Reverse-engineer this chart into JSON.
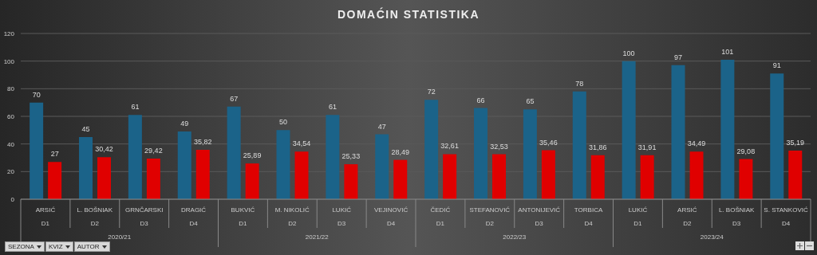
{
  "chart_data": {
    "type": "bar",
    "title": "DOMAĆIN STATISTIKA",
    "categories": [
      "ARSIĆ\nD1",
      "L. BOŠNIAK\nD2",
      "GRNČARSKI\nD3",
      "DRAGIĆ\nD4",
      "BUKVIĆ\nD1",
      "M. NIKOLIĆ\nD2",
      "LUKIĆ\nD3",
      "VEJINOVIĆ\nD4",
      "ČEDIĆ\nD1",
      "STEFANOVIĆ\nD2",
      "ANTONIJEVIĆ\nD3",
      "TORBICA\nD4",
      "LUKIĆ\nD1",
      "ARSIĆ\nD2",
      "L. BOŠNIAK\nD3",
      "S. STANKOVIĆ\nD4"
    ],
    "series": [
      {
        "color": "#1b6389",
        "values": [
          70,
          45,
          61,
          49,
          67,
          50,
          61,
          47,
          72,
          66,
          65,
          78,
          100,
          97,
          101,
          91
        ],
        "value_labels": [
          "70",
          "45",
          "61",
          "49",
          "67",
          "50",
          "61",
          "47",
          "72",
          "66",
          "65",
          "78",
          "100",
          "97",
          "101",
          "91"
        ]
      },
      {
        "color": "#e00000",
        "values": [
          27,
          30.42,
          29.42,
          35.82,
          25.89,
          34.54,
          25.33,
          28.49,
          32.61,
          32.53,
          35.46,
          31.86,
          31.91,
          34.49,
          29.08,
          35.19
        ],
        "value_labels": [
          "27",
          "30,42",
          "29,42",
          "35,82",
          "25,89",
          "34,54",
          "25,33",
          "28,49",
          "32,61",
          "32,53",
          "35,46",
          "31,86",
          "31,91",
          "34,49",
          "29,08",
          "35,19"
        ]
      }
    ],
    "ylim": [
      0,
      120
    ],
    "yticks": [
      0,
      20,
      40,
      60,
      80,
      100,
      120
    ],
    "grid": "y",
    "legend": false,
    "annotations": [
      "2020/21",
      "2021/22",
      "2022/23",
      "2023/24",
      "SEZONA",
      "KVIZ",
      "AUTOR"
    ]
  }
}
